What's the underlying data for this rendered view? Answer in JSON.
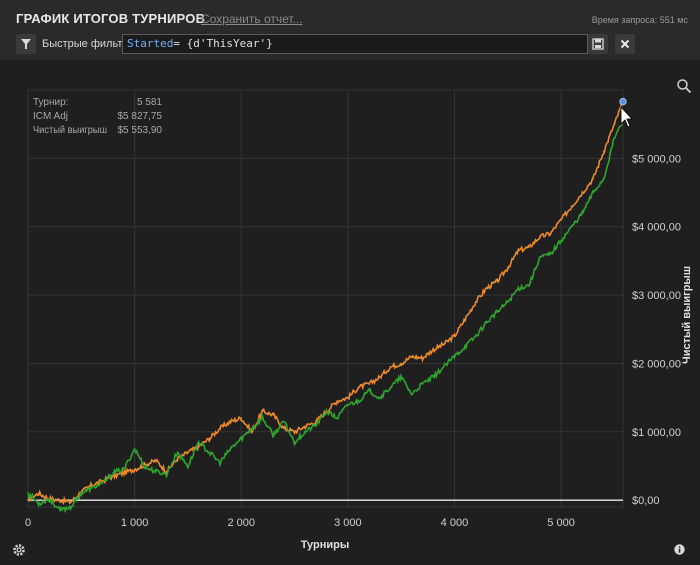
{
  "header": {
    "title": "ГРАФИК ИТОГОВ ТУРНИРОВ",
    "save_link": "Сохранить отчет...",
    "query_time": "Время запроса: 551 мс"
  },
  "filter": {
    "label": "Быстрые фильтры",
    "expression_keyword": "Started",
    "expression_rest": "= {d'ThisYear'}"
  },
  "readout": {
    "tournaments_label": "Турнир:",
    "tournaments_value": "5 581",
    "icm_label": "ICM Adj",
    "icm_value": "$5 827,75",
    "net_label": "Чистый выигрыш",
    "net_value": "$5 553,90"
  },
  "colors": {
    "icm": "#ee8a2a",
    "net": "#2fa62f",
    "zero_line": "#e8e8e8"
  },
  "icons": [
    "filter-icon",
    "save-icon",
    "close-icon",
    "zoom-icon",
    "gear-icon",
    "info-icon"
  ],
  "chart_data": {
    "type": "line",
    "xlabel": "Турниры",
    "ylabel": "Чистый выигрыш",
    "xlim": [
      0,
      5581
    ],
    "ylim": [
      -100,
      6000
    ],
    "x_ticks": [
      0,
      1000,
      2000,
      3000,
      4000,
      5000
    ],
    "x_tick_labels": [
      "0",
      "1 000",
      "2 000",
      "3 000",
      "4 000",
      "5 000"
    ],
    "y_ticks": [
      0,
      1000,
      2000,
      3000,
      4000,
      5000
    ],
    "y_tick_labels": [
      "$0,00",
      "$1 000,00",
      "$2 000,00",
      "$3 000,00",
      "$4 000,00",
      "$5 000,00"
    ],
    "grid": true,
    "y_axis_side": "right",
    "series": [
      {
        "key": "icm",
        "x": [
          0,
          100,
          200,
          300,
          400,
          500,
          600,
          700,
          800,
          900,
          1000,
          1100,
          1200,
          1300,
          1400,
          1500,
          1600,
          1700,
          1800,
          1900,
          2000,
          2100,
          2200,
          2300,
          2400,
          2500,
          2600,
          2700,
          2800,
          2900,
          3000,
          3100,
          3200,
          3300,
          3400,
          3500,
          3600,
          3700,
          3800,
          3900,
          4000,
          4100,
          4200,
          4300,
          4400,
          4500,
          4600,
          4700,
          4800,
          4900,
          5000,
          5100,
          5200,
          5300,
          5400,
          5500,
          5581
        ],
        "values": [
          10,
          100,
          20,
          0,
          -30,
          120,
          220,
          280,
          350,
          400,
          450,
          520,
          580,
          420,
          600,
          700,
          780,
          900,
          1050,
          1150,
          1200,
          1000,
          1300,
          1250,
          1050,
          1000,
          1080,
          1150,
          1300,
          1450,
          1500,
          1650,
          1700,
          1800,
          1950,
          2000,
          2100,
          2080,
          2200,
          2280,
          2400,
          2650,
          2900,
          3100,
          3200,
          3400,
          3650,
          3700,
          3850,
          3900,
          4100,
          4300,
          4500,
          4700,
          5100,
          5500,
          5830
        ]
      },
      {
        "key": "net",
        "x": [
          0,
          100,
          200,
          300,
          400,
          500,
          600,
          700,
          800,
          900,
          1000,
          1100,
          1200,
          1300,
          1400,
          1500,
          1600,
          1700,
          1800,
          1900,
          2000,
          2100,
          2200,
          2300,
          2400,
          2500,
          2600,
          2700,
          2800,
          2900,
          3000,
          3100,
          3200,
          3300,
          3400,
          3500,
          3600,
          3700,
          3800,
          3900,
          4000,
          4100,
          4200,
          4300,
          4400,
          4500,
          4600,
          4700,
          4800,
          4900,
          5000,
          5100,
          5200,
          5300,
          5400,
          5500,
          5581
        ],
        "values": [
          100,
          -50,
          20,
          -150,
          -100,
          100,
          180,
          250,
          400,
          450,
          750,
          480,
          420,
          380,
          700,
          500,
          850,
          700,
          550,
          750,
          900,
          1050,
          1200,
          950,
          1150,
          850,
          1000,
          1100,
          1300,
          1200,
          1400,
          1450,
          1600,
          1500,
          1650,
          1800,
          1550,
          1700,
          1800,
          1950,
          2100,
          2250,
          2400,
          2600,
          2750,
          2900,
          3100,
          3150,
          3550,
          3600,
          3800,
          4000,
          4200,
          4500,
          4700,
          5300,
          5550
        ]
      }
    ]
  }
}
